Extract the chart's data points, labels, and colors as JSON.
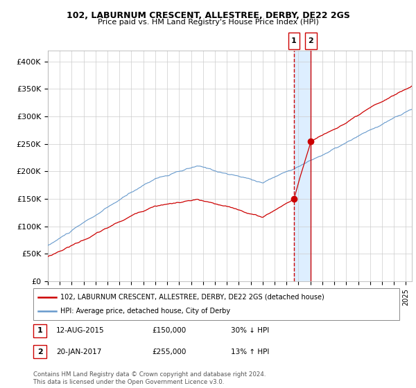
{
  "title": "102, LABURNUM CRESCENT, ALLESTREE, DERBY, DE22 2GS",
  "subtitle": "Price paid vs. HM Land Registry's House Price Index (HPI)",
  "legend_line1": "102, LABURNUM CRESCENT, ALLESTREE, DERBY, DE22 2GS (detached house)",
  "legend_line2": "HPI: Average price, detached house, City of Derby",
  "sale1_date": "12-AUG-2015",
  "sale1_price": 150000,
  "sale1_label": "30% ↓ HPI",
  "sale2_date": "20-JAN-2017",
  "sale2_price": 255000,
  "sale2_label": "13% ↑ HPI",
  "footnote": "Contains HM Land Registry data © Crown copyright and database right 2024.\nThis data is licensed under the Open Government Licence v3.0.",
  "hpi_color": "#6699cc",
  "property_color": "#cc0000",
  "marker_color": "#cc0000",
  "dashed_line_color": "#cc0000",
  "shaded_color": "#ddeeff",
  "ylim": [
    0,
    420000
  ],
  "yticks": [
    0,
    50000,
    100000,
    150000,
    200000,
    250000,
    300000,
    350000,
    400000
  ],
  "ytick_labels": [
    "£0",
    "£50K",
    "£100K",
    "£150K",
    "£200K",
    "£250K",
    "£300K",
    "£350K",
    "£400K"
  ],
  "xlim_start": 1995.0,
  "xlim_end": 2025.5,
  "sale1_year": 2015.625,
  "sale2_year": 2017.042
}
